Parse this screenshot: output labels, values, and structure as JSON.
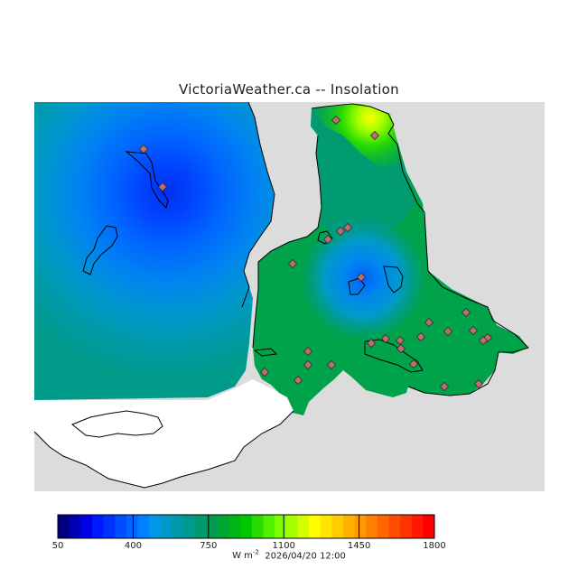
{
  "title": "VictoriaWeather.ca -- Insolation",
  "colorbar": {
    "ticks": [
      "50",
      "400",
      "750",
      "1100",
      "1450",
      "1800"
    ],
    "units_base": "W m",
    "units_exp": "-2",
    "timestamp": "2026/04/20 12:00"
  },
  "colors": {
    "land_outside": "#dcdcdc",
    "water_white": "#ffffff",
    "coast": "#000000",
    "station": "#b87070"
  },
  "palette": [
    "#00007f",
    "#0000b5",
    "#0000e6",
    "#0018ff",
    "#0032ff",
    "#004cff",
    "#0066ff",
    "#0080ff",
    "#0099e6",
    "#009ac8",
    "#009aaa",
    "#009a8c",
    "#009a6e",
    "#009a50",
    "#00a632",
    "#00b419",
    "#00c800",
    "#28dc00",
    "#50f000",
    "#7cff00",
    "#a8ff00",
    "#d4ff00",
    "#ffff00",
    "#ffe600",
    "#ffcc00",
    "#ffb300",
    "#ff9900",
    "#ff8000",
    "#ff6600",
    "#ff4c00",
    "#ff3300",
    "#ff1900",
    "#ff0000"
  ]
}
